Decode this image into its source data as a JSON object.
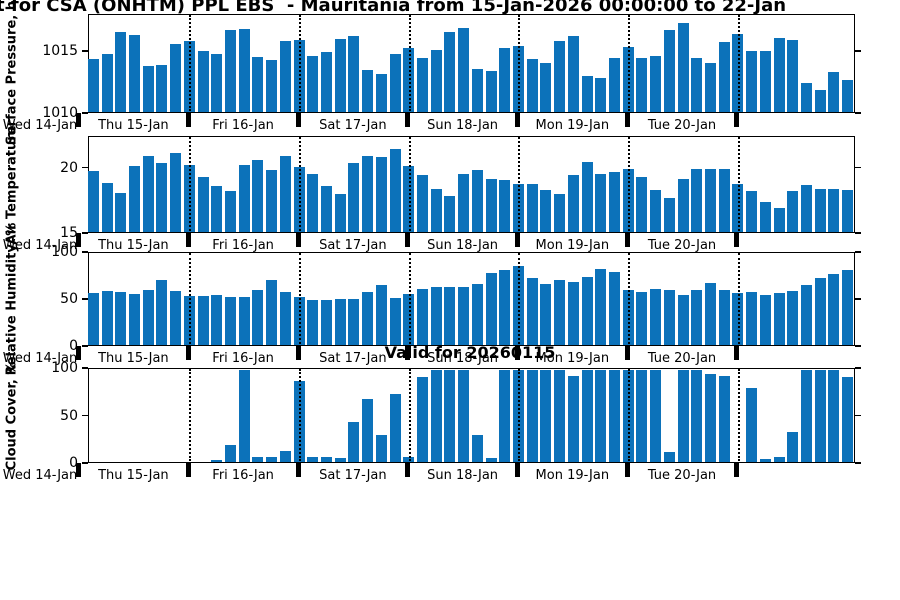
{
  "title": "t for CSA (ONHTM) PPL EBS  - Mauritania from 15-Jan-2026 00:00:00 to 22-Jan",
  "valid_label": "Valid for 20260115",
  "colors": {
    "bar": "#0c72ba",
    "axis": "#000000",
    "background": "#ffffff"
  },
  "x_axis": {
    "day_labels": [
      "Wed 14-Jan",
      "Thu 15-Jan",
      "Fri 16-Jan",
      "Sat 17-Jan",
      "Sun 18-Jan",
      "Mon 19-Jan",
      "Tue 20-Jan"
    ]
  },
  "chart_data": [
    {
      "id": "pressure",
      "type": "bar",
      "ylabel": "Surface Pressure, hPa",
      "ylim": [
        1010,
        1018
      ],
      "yticks": [
        {
          "v": 1010,
          "label": "1010"
        },
        {
          "v": 1015,
          "label": "1015"
        }
      ],
      "values": [
        1014.4,
        1014.8,
        1016.7,
        1016.4,
        1013.8,
        1013.9,
        1015.7,
        1015.9,
        1015.1,
        1014.8,
        1016.8,
        1016.9,
        1014.6,
        1014.3,
        1015.9,
        1016.0,
        1014.7,
        1015.0,
        1016.1,
        1016.3,
        1013.5,
        1013.2,
        1014.8,
        1015.3,
        1014.5,
        1015.2,
        1016.7,
        1017.0,
        1013.6,
        1013.4,
        1015.3,
        1015.5,
        1014.4,
        1014.1,
        1015.9,
        1016.3,
        1013.0,
        1012.8,
        1014.5,
        1015.4,
        1014.5,
        1014.7,
        1016.8,
        1017.4,
        1014.5,
        1014.1,
        1015.8,
        1016.5,
        1015.1,
        1015.1,
        1016.2,
        1016.0,
        1012.4,
        1011.8,
        1013.3,
        1012.7
      ]
    },
    {
      "id": "temperature",
      "type": "bar",
      "ylabel": "Air Temperature",
      "ylim": [
        15,
        22.4
      ],
      "yticks": [
        {
          "v": 15,
          "label": "15"
        },
        {
          "v": 20,
          "label": "20"
        }
      ],
      "values": [
        19.8,
        18.9,
        18.1,
        20.2,
        21.0,
        20.4,
        21.2,
        20.3,
        19.3,
        18.6,
        18.2,
        20.3,
        20.7,
        19.9,
        21.0,
        20.1,
        19.6,
        18.6,
        18.0,
        20.4,
        21.0,
        20.9,
        21.5,
        20.2,
        19.5,
        18.4,
        17.8,
        19.6,
        19.9,
        19.2,
        19.1,
        18.8,
        18.8,
        18.3,
        18.0,
        19.5,
        20.5,
        19.6,
        19.7,
        20.0,
        19.3,
        18.3,
        17.7,
        19.2,
        20.0,
        20.0,
        20.0,
        18.8,
        18.2,
        17.4,
        16.9,
        18.2,
        18.7,
        18.4,
        18.4,
        18.3
      ]
    },
    {
      "id": "humidity",
      "type": "bar",
      "ylabel": "Relative Humidity, %",
      "ylim": [
        0,
        100
      ],
      "yticks": [
        {
          "v": 0,
          "label": "0"
        },
        {
          "v": 50,
          "label": "50"
        },
        {
          "v": 100,
          "label": "100"
        }
      ],
      "values": [
        57,
        59,
        58,
        56,
        61,
        72,
        59,
        54,
        54,
        55,
        53,
        53,
        60,
        72,
        58,
        53,
        50,
        50,
        51,
        51,
        58,
        66,
        52,
        56,
        62,
        64,
        64,
        64,
        67,
        79,
        82,
        87,
        74,
        67,
        71,
        69,
        75,
        84,
        80,
        60,
        58,
        62,
        60,
        55,
        61,
        68,
        61,
        57,
        58,
        55,
        57,
        59,
        66,
        74,
        78,
        82
      ]
    },
    {
      "id": "cloud",
      "type": "bar",
      "ylabel": "Cloud Cover, %",
      "ylim": [
        0,
        100
      ],
      "yticks": [
        {
          "v": 0,
          "label": "0"
        },
        {
          "v": 50,
          "label": "50"
        },
        {
          "v": 100,
          "label": "100"
        }
      ],
      "values": [
        0,
        0,
        0,
        0,
        0,
        0,
        0,
        0,
        0,
        2,
        19,
        100,
        5,
        5,
        12,
        88,
        5,
        5,
        4,
        43,
        68,
        29,
        74,
        5,
        92,
        100,
        100,
        100,
        29,
        4,
        100,
        100,
        100,
        100,
        100,
        93,
        100,
        100,
        100,
        100,
        100,
        100,
        11,
        100,
        100,
        96,
        94,
        0,
        81,
        3,
        6,
        33,
        100,
        100,
        100,
        92
      ]
    }
  ]
}
